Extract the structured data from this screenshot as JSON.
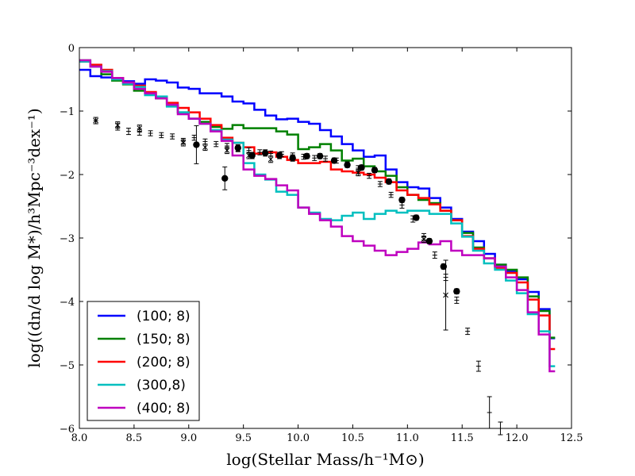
{
  "chart_data": {
    "type": "line",
    "xlabel": "log(Stellar Mass/h⁻¹M⊙)",
    "ylabel": "log((dn/d log M*)/h³Mpc⁻³dex⁻¹)",
    "xlim": [
      8.0,
      12.5
    ],
    "ylim": [
      -6,
      0
    ],
    "xticks": [
      "8.0",
      "8.5",
      "9.0",
      "9.5",
      "10.0",
      "10.5",
      "11.0",
      "11.5",
      "12.0",
      "12.5"
    ],
    "yticks": [
      "0",
      "−1",
      "−2",
      "−3",
      "−4",
      "−5",
      "−6"
    ],
    "legend_position": "lower-left",
    "bin_edges": [
      8.0,
      8.1,
      8.2,
      8.3,
      8.4,
      8.5,
      8.6,
      8.7,
      8.8,
      8.9,
      9.0,
      9.1,
      9.2,
      9.3,
      9.4,
      9.5,
      9.6,
      9.7,
      9.8,
      9.9,
      10.0,
      10.1,
      10.2,
      10.3,
      10.4,
      10.5,
      10.6,
      10.7,
      10.8,
      10.9,
      11.0,
      11.1,
      11.2,
      11.3,
      11.4,
      11.5,
      11.6,
      11.7,
      11.8,
      11.9,
      12.0,
      12.1,
      12.2,
      12.3,
      12.35
    ],
    "series": [
      {
        "name": "(100; 8)",
        "color": "#0000ff",
        "values": [
          -0.35,
          -0.45,
          -0.47,
          -0.5,
          -0.53,
          -0.57,
          -0.5,
          -0.52,
          -0.55,
          -0.63,
          -0.65,
          -0.72,
          -0.72,
          -0.77,
          -0.85,
          -0.88,
          -0.98,
          -1.07,
          -1.13,
          -1.12,
          -1.17,
          -1.2,
          -1.3,
          -1.4,
          -1.52,
          -1.62,
          -1.72,
          -1.7,
          -1.92,
          -2.12,
          -2.2,
          -2.22,
          -2.37,
          -2.52,
          -2.7,
          -2.9,
          -3.05,
          -3.25,
          -3.42,
          -3.52,
          -3.65,
          -3.85,
          -4.12,
          -4.58
        ]
      },
      {
        "name": "(150; 8)",
        "color": "#008000",
        "values": [
          -0.2,
          -0.28,
          -0.42,
          -0.52,
          -0.58,
          -0.68,
          -0.72,
          -0.8,
          -0.92,
          -1.02,
          -1.12,
          -1.17,
          -1.25,
          -1.28,
          -1.22,
          -1.27,
          -1.27,
          -1.27,
          -1.32,
          -1.37,
          -1.6,
          -1.57,
          -1.52,
          -1.62,
          -1.78,
          -1.75,
          -1.87,
          -1.95,
          -2.02,
          -2.2,
          -2.32,
          -2.4,
          -2.45,
          -2.57,
          -2.72,
          -2.92,
          -3.15,
          -3.32,
          -3.42,
          -3.5,
          -3.62,
          -3.92,
          -4.15,
          -4.57
        ]
      },
      {
        "name": "(200; 8)",
        "color": "#ff0000",
        "values": [
          -0.22,
          -0.27,
          -0.35,
          -0.48,
          -0.55,
          -0.6,
          -0.7,
          -0.78,
          -0.87,
          -0.95,
          -1.02,
          -1.12,
          -1.22,
          -1.42,
          -1.5,
          -1.57,
          -1.67,
          -1.65,
          -1.72,
          -1.77,
          -1.82,
          -1.82,
          -1.8,
          -1.92,
          -1.95,
          -1.97,
          -2.0,
          -2.05,
          -2.12,
          -2.25,
          -2.32,
          -2.37,
          -2.47,
          -2.57,
          -2.72,
          -2.97,
          -3.17,
          -3.32,
          -3.47,
          -3.55,
          -3.7,
          -3.97,
          -4.22,
          -4.75
        ]
      },
      {
        "name": "(300,8)",
        "color": "#00bfbf",
        "values": [
          -0.22,
          -0.3,
          -0.37,
          -0.5,
          -0.57,
          -0.62,
          -0.75,
          -0.77,
          -0.93,
          -1.02,
          -1.12,
          -1.2,
          -1.3,
          -1.45,
          -1.5,
          -1.82,
          -2.0,
          -2.08,
          -2.27,
          -2.32,
          -2.52,
          -2.6,
          -2.7,
          -2.72,
          -2.65,
          -2.6,
          -2.7,
          -2.62,
          -2.57,
          -2.6,
          -2.57,
          -2.57,
          -2.62,
          -2.62,
          -2.77,
          -2.98,
          -3.2,
          -3.4,
          -3.5,
          -3.67,
          -3.87,
          -4.2,
          -4.47,
          -5.02
        ]
      },
      {
        "name": "(400; 8)",
        "color": "#bf00bf",
        "values": [
          -0.2,
          -0.3,
          -0.38,
          -0.48,
          -0.55,
          -0.65,
          -0.72,
          -0.8,
          -0.9,
          -1.05,
          -1.12,
          -1.2,
          -1.32,
          -1.47,
          -1.7,
          -1.92,
          -2.02,
          -2.07,
          -2.17,
          -2.25,
          -2.52,
          -2.62,
          -2.72,
          -2.82,
          -2.97,
          -3.05,
          -3.12,
          -3.2,
          -3.27,
          -3.22,
          -3.17,
          -3.07,
          -3.1,
          -3.05,
          -3.2,
          -3.27,
          -3.27,
          -3.32,
          -3.45,
          -3.62,
          -3.82,
          -4.17,
          -4.52,
          -5.1
        ]
      }
    ],
    "observations_plus": [
      {
        "x": 8.15,
        "y": -1.15,
        "err": 0.05
      },
      {
        "x": 8.35,
        "y": -1.25,
        "err": 0.05
      },
      {
        "x": 8.45,
        "y": -1.32,
        "err": 0.05
      },
      {
        "x": 8.55,
        "y": -1.33,
        "err": 0.05
      },
      {
        "x": 8.65,
        "y": -1.35,
        "err": 0.04
      },
      {
        "x": 8.75,
        "y": -1.38,
        "err": 0.04
      },
      {
        "x": 8.85,
        "y": -1.4,
        "err": 0.04
      },
      {
        "x": 8.95,
        "y": -1.47,
        "err": 0.04
      },
      {
        "x": 9.05,
        "y": -1.42,
        "err": 0.04
      },
      {
        "x": 9.15,
        "y": -1.48,
        "err": 0.04
      },
      {
        "x": 9.25,
        "y": -1.52,
        "err": 0.04
      },
      {
        "x": 9.35,
        "y": -1.55,
        "err": 0.04
      },
      {
        "x": 9.45,
        "y": -1.6,
        "err": 0.04
      },
      {
        "x": 9.55,
        "y": -1.62,
        "err": 0.04
      },
      {
        "x": 9.65,
        "y": -1.65,
        "err": 0.04
      },
      {
        "x": 9.75,
        "y": -1.67,
        "err": 0.04
      },
      {
        "x": 9.85,
        "y": -1.68,
        "err": 0.04
      },
      {
        "x": 9.95,
        "y": -1.7,
        "err": 0.04
      },
      {
        "x": 10.05,
        "y": -1.72,
        "err": 0.04
      },
      {
        "x": 10.15,
        "y": -1.74,
        "err": 0.04
      },
      {
        "x": 10.25,
        "y": -1.75,
        "err": 0.04
      },
      {
        "x": 10.35,
        "y": -1.78,
        "err": 0.04
      },
      {
        "x": 10.45,
        "y": -1.84,
        "err": 0.04
      },
      {
        "x": 10.55,
        "y": -1.9,
        "err": 0.04
      },
      {
        "x": 10.65,
        "y": -2.02,
        "err": 0.04
      },
      {
        "x": 10.75,
        "y": -2.15,
        "err": 0.04
      },
      {
        "x": 10.85,
        "y": -2.32,
        "err": 0.04
      },
      {
        "x": 10.95,
        "y": -2.48,
        "err": 0.05
      },
      {
        "x": 11.05,
        "y": -2.7,
        "err": 0.05
      },
      {
        "x": 11.15,
        "y": -2.98,
        "err": 0.05
      },
      {
        "x": 11.25,
        "y": -3.27,
        "err": 0.05
      },
      {
        "x": 11.35,
        "y": -3.62,
        "err": 0.05
      },
      {
        "x": 11.45,
        "y": -3.98,
        "err": 0.05
      },
      {
        "x": 11.55,
        "y": -4.47,
        "err": 0.05
      },
      {
        "x": 11.65,
        "y": -5.02,
        "err": 0.08
      },
      {
        "x": 11.75,
        "y": -5.75,
        "err": 0.25
      },
      {
        "x": 11.85,
        "y": -6.0,
        "err": 0.1
      }
    ],
    "observations_x": [
      {
        "x": 8.15,
        "y": -1.15,
        "err": 0.05
      },
      {
        "x": 8.35,
        "y": -1.22,
        "err": 0.05
      },
      {
        "x": 8.55,
        "y": -1.27,
        "err": 0.05
      },
      {
        "x": 8.95,
        "y": -1.5,
        "err": 0.05
      },
      {
        "x": 9.15,
        "y": -1.57,
        "err": 0.05
      },
      {
        "x": 9.35,
        "y": -1.62,
        "err": 0.05
      },
      {
        "x": 9.55,
        "y": -1.7,
        "err": 0.05
      },
      {
        "x": 9.75,
        "y": -1.76,
        "err": 0.05
      },
      {
        "x": 10.55,
        "y": -1.97,
        "err": 0.05
      },
      {
        "x": 11.15,
        "y": -3.02,
        "err": 0.05
      },
      {
        "x": 11.35,
        "y": -3.9,
        "err": 0.55
      }
    ],
    "observations_circle": [
      {
        "x": 9.07,
        "y": -1.53,
        "err": 0.3
      },
      {
        "x": 9.33,
        "y": -2.06,
        "err": 0.18
      },
      {
        "x": 9.45,
        "y": -1.58,
        "err": 0.05
      },
      {
        "x": 9.58,
        "y": -1.7,
        "err": 0.05
      },
      {
        "x": 9.7,
        "y": -1.66,
        "err": 0.05
      },
      {
        "x": 9.83,
        "y": -1.7,
        "err": 0.05
      },
      {
        "x": 9.95,
        "y": -1.74,
        "err": 0.05
      },
      {
        "x": 10.08,
        "y": -1.71,
        "err": 0.04
      },
      {
        "x": 10.2,
        "y": -1.71,
        "err": 0.04
      },
      {
        "x": 10.33,
        "y": -1.78,
        "err": 0.04
      },
      {
        "x": 10.45,
        "y": -1.85,
        "err": 0.04
      },
      {
        "x": 10.58,
        "y": -1.89,
        "err": 0.04
      },
      {
        "x": 10.7,
        "y": -1.93,
        "err": 0.04
      },
      {
        "x": 10.83,
        "y": -2.11,
        "err": 0.04
      },
      {
        "x": 10.95,
        "y": -2.4,
        "err": 0.04
      },
      {
        "x": 11.08,
        "y": -2.68,
        "err": 0.04
      },
      {
        "x": 11.2,
        "y": -3.05,
        "err": 0.04
      },
      {
        "x": 11.33,
        "y": -3.45,
        "err": 0.04
      },
      {
        "x": 11.45,
        "y": -3.84,
        "err": 0.04
      }
    ]
  }
}
